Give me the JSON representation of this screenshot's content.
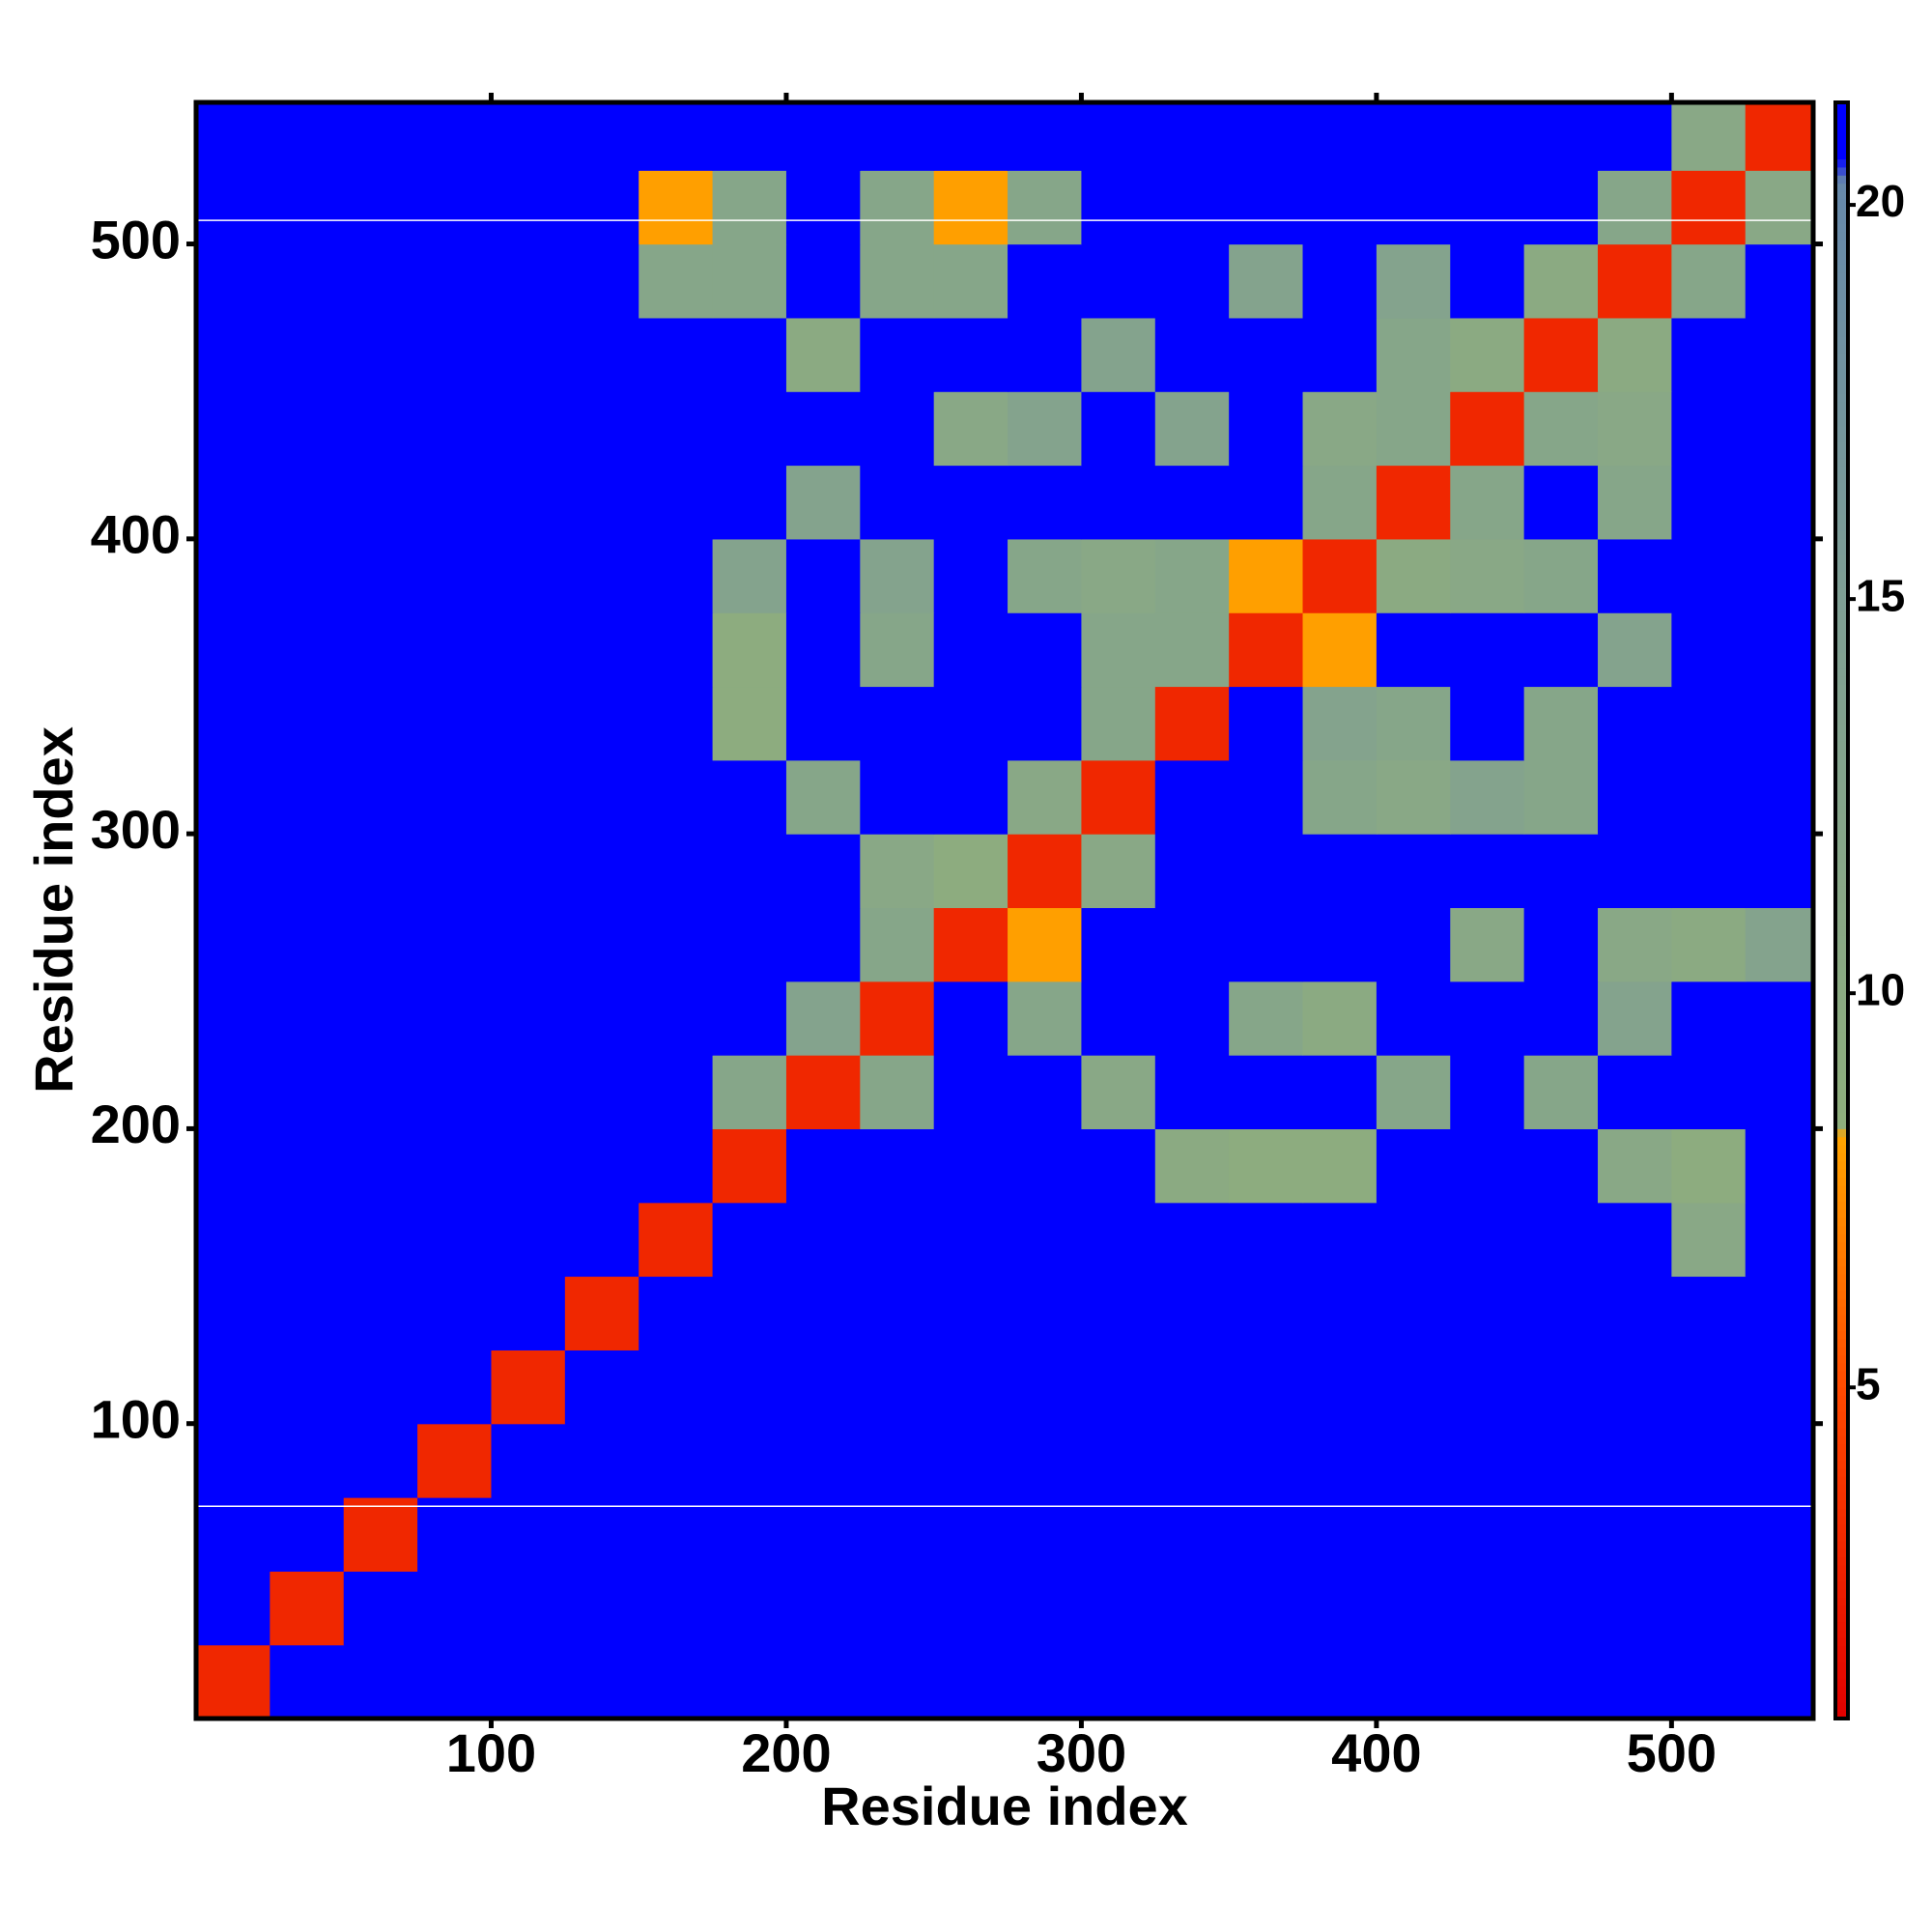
{
  "chart_data": {
    "type": "heatmap",
    "x_label": "Residue index",
    "y_label": "Residue index",
    "bins": [
      0,
      25,
      50,
      75,
      100,
      125,
      150,
      175,
      200,
      225,
      250,
      275,
      300,
      325,
      350,
      375,
      400,
      425,
      450,
      475,
      500,
      525,
      550
    ],
    "xlim": [
      0,
      548
    ],
    "ylim": [
      0,
      548
    ],
    "xticks": [
      100,
      200,
      300,
      400,
      500
    ],
    "yticks": [
      100,
      200,
      300,
      400,
      500
    ],
    "zlim": [
      0.8,
      21.3
    ],
    "zticks": [
      5,
      10,
      15,
      20
    ],
    "colorscale": [
      {
        "value": 0.8,
        "color": "#e00000"
      },
      {
        "value": 5,
        "color": "#ff4a00"
      },
      {
        "value": 8.2,
        "color": "#ffa500"
      },
      {
        "value": 8.3,
        "color": "#8fae7c"
      },
      {
        "value": 15,
        "color": "#7f9f94"
      },
      {
        "value": 20.3,
        "color": "#6688aa"
      },
      {
        "value": 20.6,
        "color": "#0000ff"
      },
      {
        "value": 21.3,
        "color": "#0000ff"
      }
    ],
    "hlines": [
      72,
      508
    ],
    "hline_color": "#ffffff",
    "z": [
      [
        3,
        21,
        21,
        21,
        21,
        21,
        21,
        21,
        21,
        21,
        21,
        21,
        21,
        21,
        21,
        21,
        21,
        21,
        21,
        21,
        21,
        21
      ],
      [
        21,
        3,
        21,
        21,
        21,
        21,
        21,
        21,
        21,
        21,
        21,
        21,
        21,
        21,
        21,
        21,
        21,
        21,
        21,
        21,
        21,
        21
      ],
      [
        21,
        21,
        3,
        21,
        21,
        21,
        21,
        21,
        21,
        21,
        21,
        21,
        21,
        21,
        21,
        21,
        21,
        21,
        21,
        21,
        21,
        21
      ],
      [
        21,
        21,
        21,
        3,
        21,
        21,
        21,
        21,
        21,
        21,
        21,
        21,
        21,
        21,
        21,
        21,
        21,
        21,
        21,
        21,
        21,
        21
      ],
      [
        21,
        21,
        21,
        21,
        3,
        21,
        21,
        21,
        21,
        21,
        21,
        21,
        21,
        21,
        21,
        21,
        21,
        21,
        21,
        21,
        21,
        21
      ],
      [
        21,
        21,
        21,
        21,
        21,
        3,
        21,
        21,
        21,
        21,
        21,
        21,
        21,
        21,
        21,
        21,
        21,
        21,
        21,
        21,
        21,
        21
      ],
      [
        21,
        21,
        21,
        21,
        21,
        21,
        3,
        21,
        21,
        21,
        21,
        21,
        21,
        21,
        21,
        21,
        21,
        21,
        21,
        21,
        11,
        21
      ],
      [
        21,
        21,
        21,
        21,
        21,
        21,
        21,
        3,
        21,
        21,
        21,
        21,
        21,
        10,
        9,
        9,
        21,
        21,
        21,
        11,
        9,
        21
      ],
      [
        21,
        21,
        21,
        21,
        21,
        21,
        21,
        12,
        3,
        12,
        21,
        21,
        11,
        21,
        21,
        21,
        12,
        21,
        12,
        21,
        21,
        21
      ],
      [
        21,
        21,
        21,
        21,
        21,
        21,
        21,
        21,
        13,
        3,
        21,
        12,
        21,
        21,
        12,
        10,
        21,
        21,
        21,
        13,
        21,
        21
      ],
      [
        21,
        21,
        21,
        21,
        21,
        21,
        21,
        21,
        21,
        12,
        3,
        8,
        21,
        21,
        21,
        21,
        21,
        11,
        21,
        11,
        10,
        13
      ],
      [
        21,
        21,
        21,
        21,
        21,
        21,
        21,
        21,
        21,
        11,
        9,
        3,
        11,
        21,
        21,
        21,
        21,
        21,
        21,
        21,
        21,
        21
      ],
      [
        21,
        21,
        21,
        21,
        21,
        21,
        21,
        21,
        12,
        21,
        21,
        11,
        3,
        21,
        21,
        12,
        11,
        13,
        12,
        21,
        21,
        21
      ],
      [
        21,
        21,
        21,
        21,
        21,
        21,
        21,
        9,
        21,
        21,
        21,
        21,
        12,
        3,
        21,
        13,
        12,
        21,
        12,
        21,
        21,
        21
      ],
      [
        21,
        21,
        21,
        21,
        21,
        21,
        21,
        9,
        21,
        12,
        21,
        21,
        12,
        12,
        3,
        8,
        21,
        21,
        21,
        13,
        21,
        21
      ],
      [
        21,
        21,
        21,
        21,
        21,
        21,
        21,
        13,
        21,
        13,
        21,
        12,
        11,
        12,
        8,
        3,
        10,
        11,
        12,
        21,
        21,
        21
      ],
      [
        21,
        21,
        21,
        21,
        21,
        21,
        21,
        21,
        13,
        21,
        21,
        21,
        21,
        21,
        21,
        12,
        3,
        12,
        21,
        12,
        21,
        21
      ],
      [
        21,
        21,
        21,
        21,
        21,
        21,
        21,
        21,
        21,
        21,
        11,
        13,
        21,
        13,
        21,
        11,
        12,
        3,
        12,
        11,
        21,
        21
      ],
      [
        21,
        21,
        21,
        21,
        21,
        21,
        21,
        21,
        10,
        21,
        21,
        21,
        13,
        21,
        21,
        21,
        12,
        10,
        3,
        10,
        21,
        21
      ],
      [
        21,
        21,
        21,
        21,
        21,
        21,
        12,
        12,
        21,
        12,
        12,
        21,
        21,
        21,
        13,
        21,
        13,
        21,
        10,
        3,
        12,
        21
      ],
      [
        21,
        21,
        21,
        21,
        21,
        21,
        8,
        12,
        21,
        12,
        8,
        12,
        21,
        21,
        21,
        21,
        21,
        21,
        21,
        12,
        3,
        11
      ],
      [
        21,
        21,
        21,
        21,
        21,
        21,
        21,
        21,
        21,
        21,
        21,
        21,
        21,
        21,
        21,
        21,
        21,
        21,
        21,
        21,
        11,
        3
      ]
    ]
  }
}
